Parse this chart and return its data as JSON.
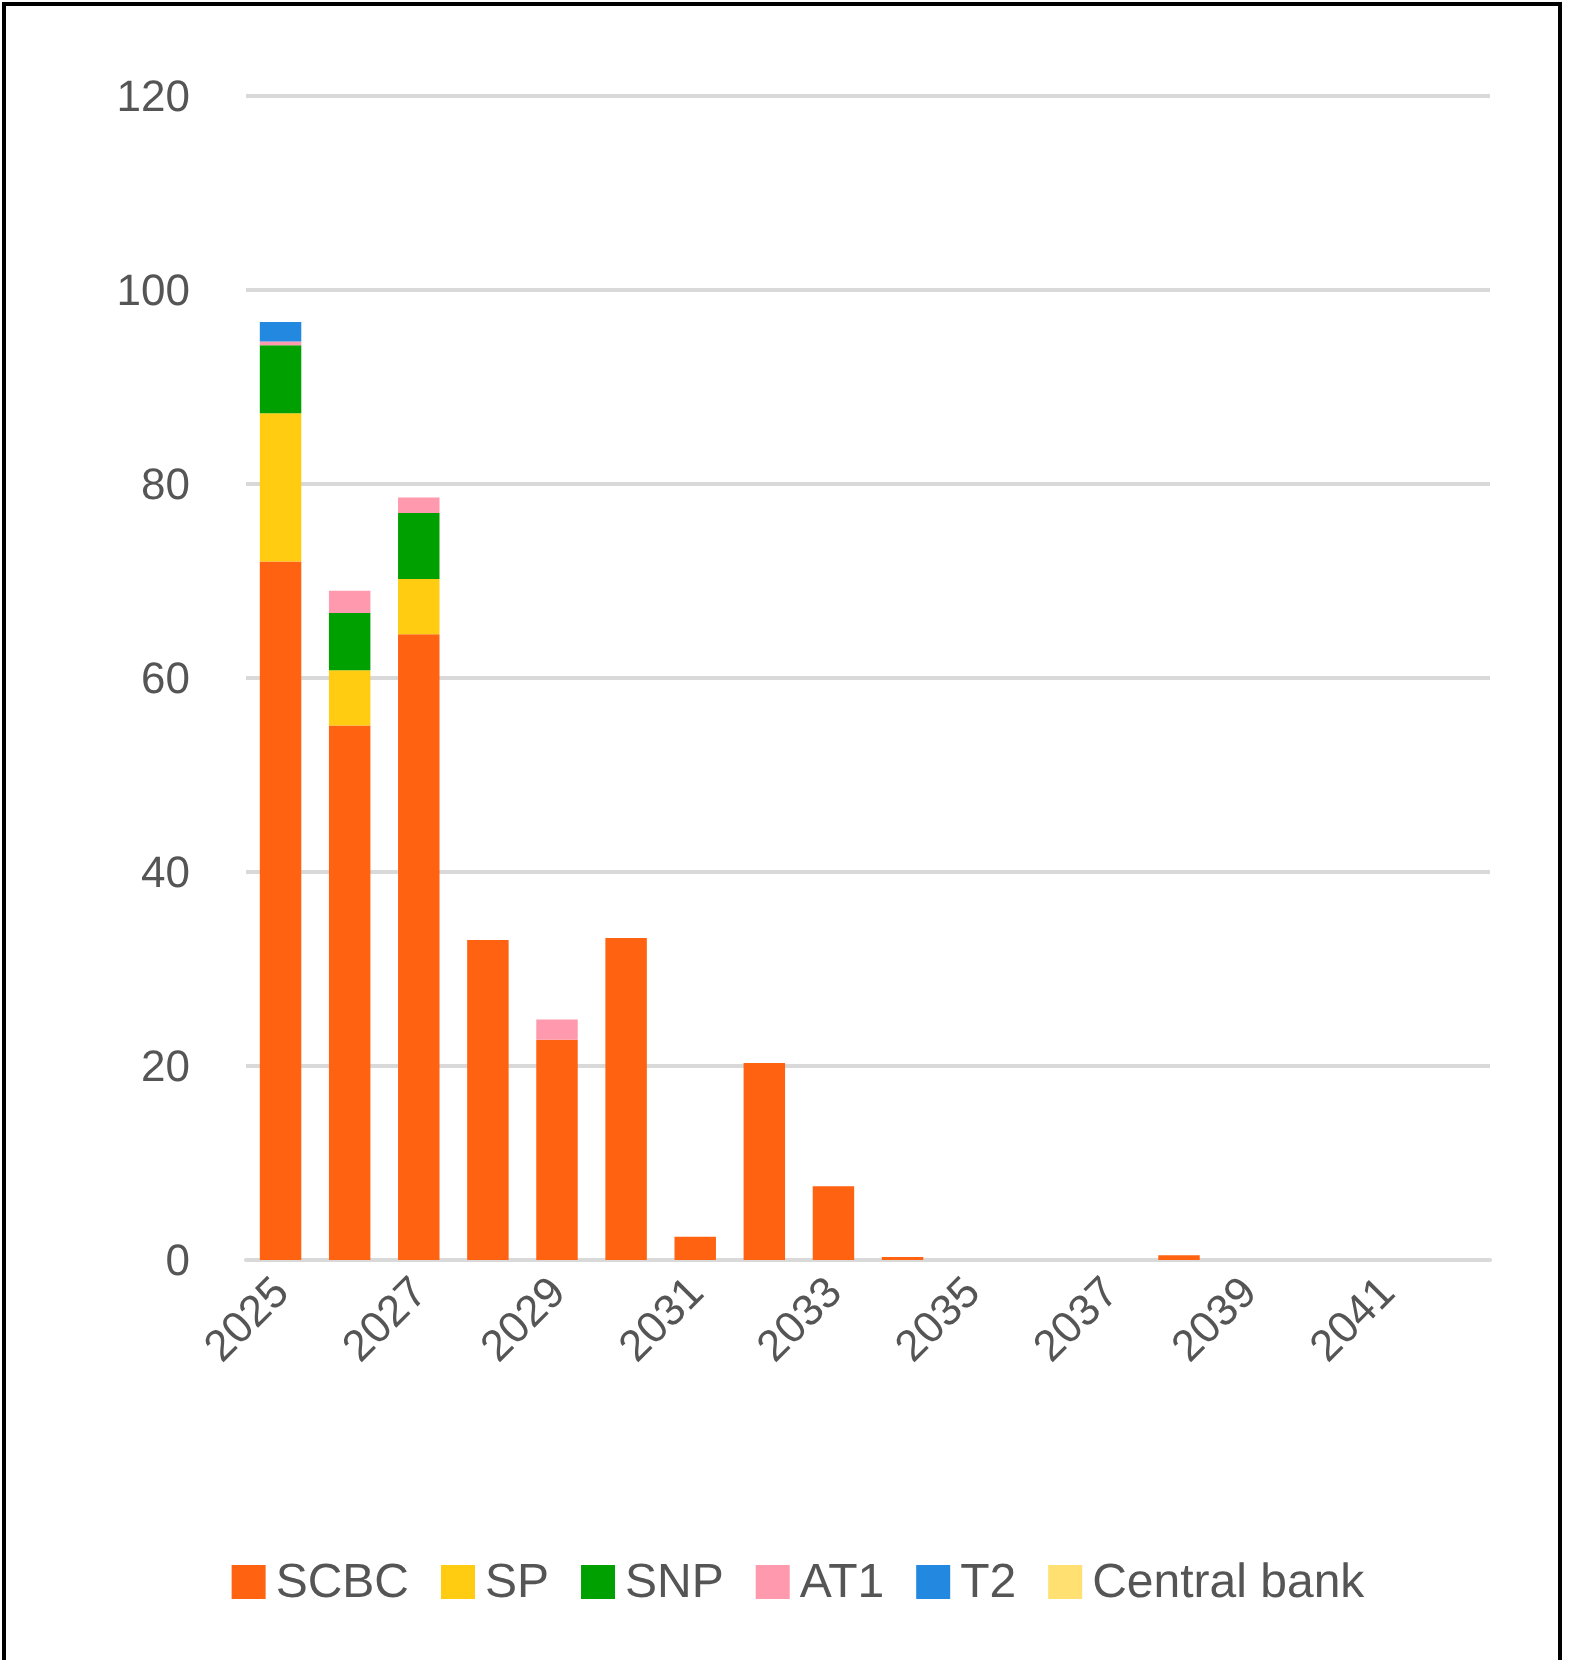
{
  "chart_data": {
    "type": "bar",
    "stacked": true,
    "categories": [
      "2025",
      null,
      "2027",
      null,
      "2029",
      null,
      "2031",
      null,
      "2033",
      null,
      "2035",
      null,
      "2037",
      null,
      "2039",
      null,
      "2041",
      null
    ],
    "series": [
      {
        "name": "SCBC",
        "color": "#ff6210",
        "values": [
          72,
          55.1,
          64.5,
          33,
          22.7,
          33.2,
          2.4,
          20.3,
          7.6,
          0.3,
          null,
          null,
          null,
          0.5,
          null,
          null,
          null,
          null
        ]
      },
      {
        "name": "SP",
        "color": "#ffcc11",
        "values": [
          15.3,
          5.7,
          5.7,
          null,
          null,
          null,
          null,
          null,
          null,
          null,
          null,
          null,
          null,
          null,
          null,
          null,
          null,
          null
        ]
      },
      {
        "name": "SNP",
        "color": "#00a000",
        "values": [
          7,
          5.9,
          6.8,
          null,
          null,
          null,
          null,
          null,
          null,
          null,
          null,
          null,
          null,
          null,
          null,
          null,
          null,
          null
        ]
      },
      {
        "name": "AT1",
        "color": "#ff9aae",
        "values": [
          0.4,
          2.3,
          1.6,
          null,
          2.1,
          null,
          null,
          null,
          null,
          null,
          null,
          null,
          null,
          null,
          null,
          null,
          null,
          null
        ]
      },
      {
        "name": "T2",
        "color": "#2288e0",
        "values": [
          2,
          null,
          null,
          null,
          null,
          null,
          null,
          null,
          null,
          null,
          null,
          null,
          null,
          null,
          null,
          null,
          null,
          null
        ]
      },
      {
        "name": "Central bank",
        "color": "#ffe070",
        "values": [
          null,
          null,
          null,
          null,
          null,
          null,
          null,
          null,
          null,
          null,
          null,
          null,
          null,
          null,
          null,
          null,
          null,
          null
        ]
      }
    ],
    "ylim": [
      0,
      120
    ],
    "yticks": [
      0,
      20,
      40,
      60,
      80,
      100,
      120
    ],
    "grid": "y",
    "legend": "bottom"
  }
}
